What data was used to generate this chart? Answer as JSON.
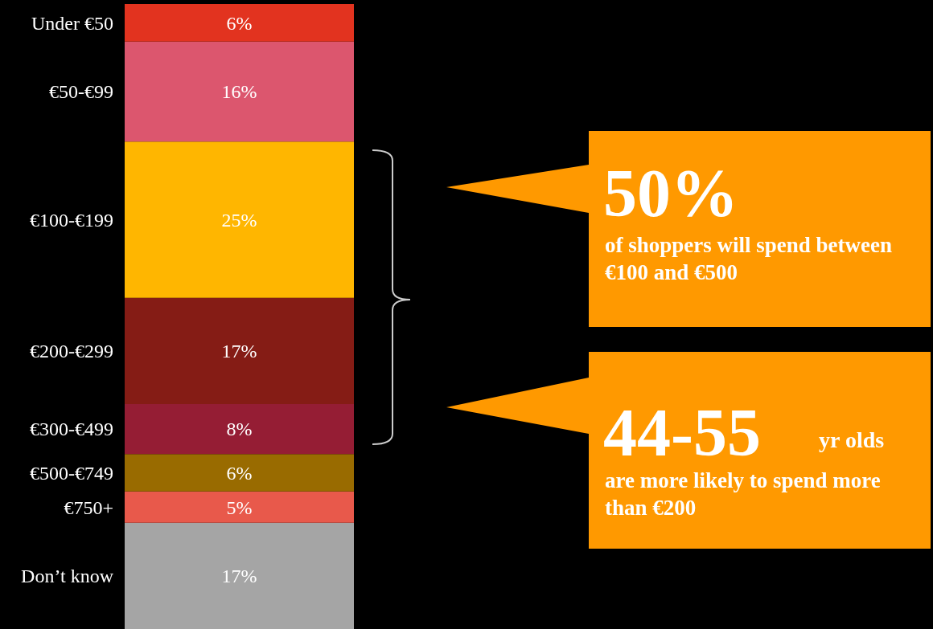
{
  "chart_data": {
    "type": "bar",
    "stacked": true,
    "categories": [
      null
    ],
    "series": [
      {
        "name": "Don’t know",
        "color": "#a5a5a5",
        "values": [
          17
        ],
        "value_labels": [
          "17%"
        ]
      },
      {
        "name": "€750+",
        "color": "#e8594b",
        "values": [
          5
        ],
        "value_labels": [
          "5%"
        ]
      },
      {
        "name": "€500-€749",
        "color": "#996b00",
        "values": [
          6
        ],
        "value_labels": [
          "6%"
        ]
      },
      {
        "name": "€300-€499",
        "color": "#951d34",
        "values": [
          8
        ],
        "value_labels": [
          "8%"
        ]
      },
      {
        "name": "€200-€299",
        "color": "#851c15",
        "values": [
          17
        ],
        "value_labels": [
          "17%"
        ]
      },
      {
        "name": "€100-€199",
        "color": "#ffb600",
        "values": [
          25
        ],
        "value_labels": [
          "25%"
        ]
      },
      {
        "name": "€50-€99",
        "color": "#dc566e",
        "values": [
          16
        ],
        "value_labels": [
          "16%"
        ]
      },
      {
        "name": "Under €50",
        "color": "#e2331f",
        "values": [
          6
        ],
        "value_labels": [
          "6%"
        ]
      }
    ],
    "annotations": [
      "50%",
      "of shoppers will spend between €100 and €500",
      "44-55",
      "yr olds",
      "are more likely to spend more than €200"
    ]
  }
}
